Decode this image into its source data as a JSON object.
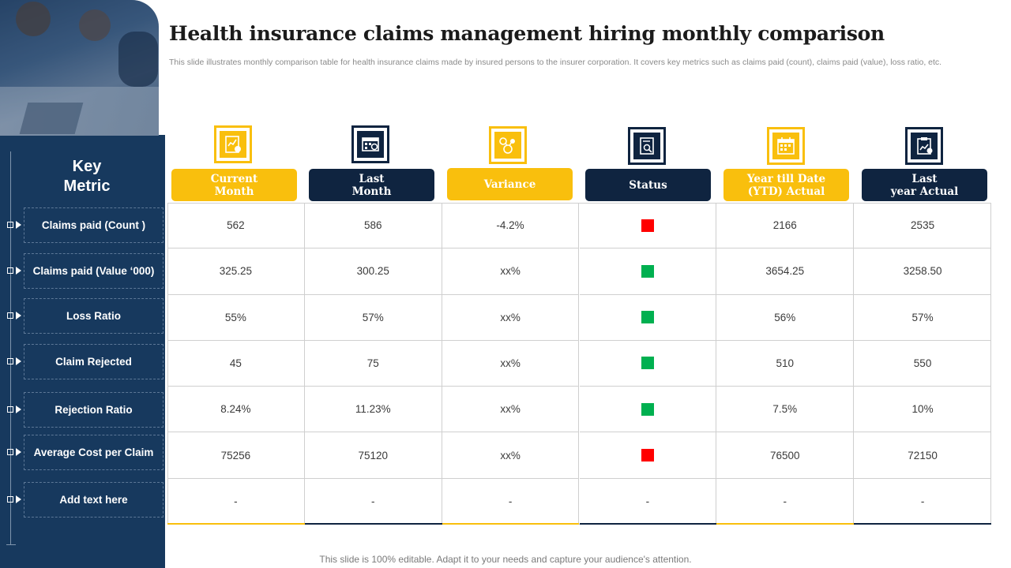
{
  "header": {
    "title": "Health insurance claims management hiring monthly comparison",
    "subtitle": "This slide illustrates monthly comparison table for health insurance claims made by insured persons to the insurer corporation. It covers key metrics such as claims paid (count), claims paid (value), loss ratio, etc."
  },
  "sidebar": {
    "title": "Key\nMetric",
    "metrics": [
      "Claims paid (Count )",
      "Claims paid (Value ‘000)",
      "Loss  Ratio",
      "Claim Rejected",
      "Rejection Ratio",
      "Average Cost  per Claim",
      "Add text here"
    ]
  },
  "columns": [
    {
      "label": "Current\nMonth",
      "style": "yellow",
      "icon": "chart-report-icon"
    },
    {
      "label": "Last\nMonth",
      "style": "navy",
      "icon": "calendar-grid-icon"
    },
    {
      "label": "Variance",
      "style": "yellow",
      "icon": "variance-molecule-icon"
    },
    {
      "label": "Status",
      "style": "navy",
      "icon": "document-search-icon"
    },
    {
      "label": "Year till Date\n(YTD) Actual",
      "style": "yellow",
      "icon": "calendar-icon"
    },
    {
      "label": "Last\nyear Actual",
      "style": "navy",
      "icon": "clipboard-chart-icon"
    }
  ],
  "rows": [
    {
      "current": "562",
      "last": "586",
      "variance": "-4.2%",
      "status": "red",
      "ytd": "2166",
      "last_year": "2535"
    },
    {
      "current": "325.25",
      "last": "300.25",
      "variance": "xx%",
      "status": "green",
      "ytd": "3654.25",
      "last_year": "3258.50"
    },
    {
      "current": "55%",
      "last": "57%",
      "variance": "xx%",
      "status": "green",
      "ytd": "56%",
      "last_year": "57%"
    },
    {
      "current": "45",
      "last": "75",
      "variance": "xx%",
      "status": "green",
      "ytd": "510",
      "last_year": "550"
    },
    {
      "current": "8.24%",
      "last": "11.23%",
      "variance": "xx%",
      "status": "green",
      "ytd": "7.5%",
      "last_year": "10%"
    },
    {
      "current": "75256",
      "last": "75120",
      "variance": "xx%",
      "status": "red",
      "ytd": "76500",
      "last_year": "72150"
    },
    {
      "current": "-",
      "last": "-",
      "variance": "-",
      "status": "-",
      "ytd": "-",
      "last_year": "-"
    }
  ],
  "colors": {
    "yellow": "#f9bf0d",
    "navy": "#0f2440",
    "sidebar": "#17395e",
    "status_red": "#ff0000",
    "status_green": "#00b050"
  },
  "footer": {
    "text": "This slide is 100% editable. Adapt it to your needs and capture your audience's attention."
  }
}
